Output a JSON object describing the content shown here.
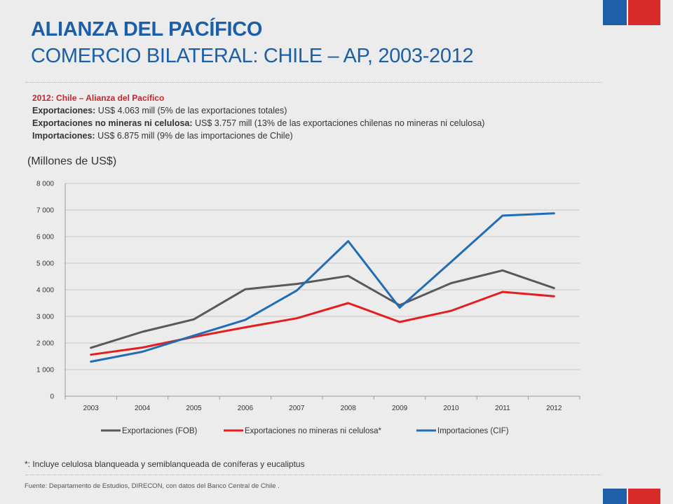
{
  "header": {
    "title_line1": "ALIANZA DEL PACÍFICO",
    "title_line2": "COMERCIO BILATERAL: CHILE – AP, 2003-2012"
  },
  "info": {
    "heading": "2012: Chile – Alianza del Pacífico",
    "exports_label": "Exportaciones:",
    "exports_text": " US$ 4.063 mill (5% de las exportaciones totales)",
    "nonmining_label": "Exportaciones no mineras ni celulosa:",
    "nonmining_text": " US$ 3.757 mill (13% de las exportaciones chilenas no mineras ni celulosa)",
    "imports_label": "Importaciones:",
    "imports_text": " US$ 6.875 mill (9%  de las importaciones  de Chile)"
  },
  "unit_label": "(Millones de US$)",
  "footnote": "*: Incluye celulosa blanqueada y semiblanqueada de coníferas y eucaliptus",
  "source": "Fuente:  Departamento de Estudios, DIRECON, con datos del  Banco Central  de Chile .",
  "colors": {
    "title": "#1a5fa7",
    "flag_blue": "#1f5fa8",
    "flag_red": "#d82c2c"
  },
  "chart_data": {
    "type": "line",
    "x": [
      "2003",
      "2004",
      "2005",
      "2006",
      "2007",
      "2008",
      "2009",
      "2010",
      "2011",
      "2012"
    ],
    "ylim": [
      0,
      8000
    ],
    "yticks": [
      0,
      1000,
      2000,
      3000,
      4000,
      5000,
      6000,
      7000,
      8000
    ],
    "ytick_labels": [
      "0",
      "1 000",
      "2 000",
      "3 000",
      "4 000",
      "5 000",
      "6 000",
      "7 000",
      "8 000"
    ],
    "grid": true,
    "legend_position": "bottom",
    "series": [
      {
        "name": "Exportaciones (FOB)",
        "color": "#595959",
        "values": [
          1820,
          2420,
          2890,
          4020,
          4220,
          4520,
          3420,
          4250,
          4730,
          4063
        ]
      },
      {
        "name": "Exportaciones no mineras ni celulosa*",
        "color": "#e41e1e",
        "values": [
          1560,
          1830,
          2230,
          2590,
          2930,
          3500,
          2790,
          3210,
          3920,
          3757
        ]
      },
      {
        "name": "Importaciones (CIF)",
        "color": "#1f6db4",
        "values": [
          1300,
          1670,
          2280,
          2870,
          3970,
          5830,
          3330,
          5050,
          6790,
          6875
        ]
      }
    ]
  }
}
